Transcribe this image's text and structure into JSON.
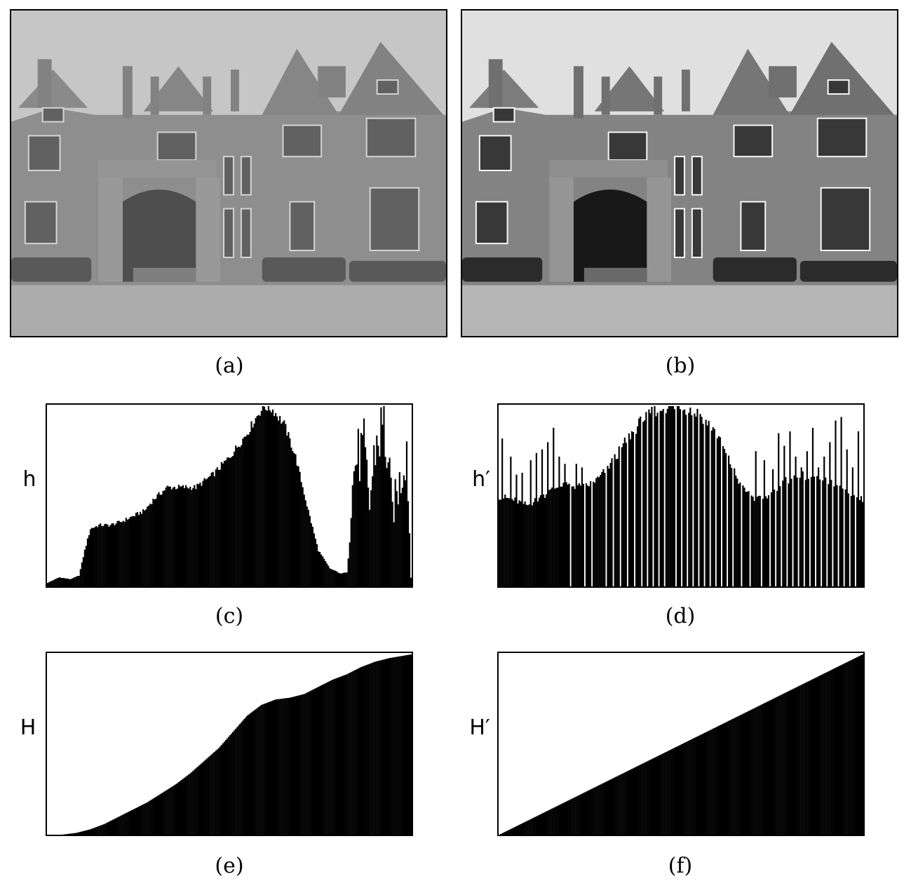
{
  "panels": [
    {
      "id": "a",
      "caption": "(a)"
    },
    {
      "id": "b",
      "caption": "(b)"
    },
    {
      "id": "c",
      "caption": "(c)"
    },
    {
      "id": "d",
      "caption": "(d)"
    },
    {
      "id": "e",
      "caption": "(e)"
    },
    {
      "id": "f",
      "caption": "(f)"
    }
  ],
  "chart_data": [
    {
      "type": "bar",
      "panel": "c",
      "ylabel": "h",
      "xlim": [
        0,
        255
      ],
      "grid": false,
      "profile_points": [
        [
          0,
          0.02
        ],
        [
          8,
          0.05
        ],
        [
          16,
          0.04
        ],
        [
          22,
          0.06
        ],
        [
          26,
          0.2
        ],
        [
          30,
          0.32
        ],
        [
          36,
          0.34
        ],
        [
          44,
          0.34
        ],
        [
          52,
          0.36
        ],
        [
          60,
          0.39
        ],
        [
          68,
          0.42
        ],
        [
          74,
          0.48
        ],
        [
          84,
          0.55
        ],
        [
          96,
          0.55
        ],
        [
          104,
          0.55
        ],
        [
          116,
          0.62
        ],
        [
          128,
          0.72
        ],
        [
          140,
          0.85
        ],
        [
          148,
          0.96
        ],
        [
          152,
          1.0
        ],
        [
          158,
          0.98
        ],
        [
          166,
          0.9
        ],
        [
          174,
          0.72
        ],
        [
          182,
          0.45
        ],
        [
          190,
          0.2
        ],
        [
          198,
          0.1
        ],
        [
          206,
          0.07
        ],
        [
          210,
          0.08
        ],
        [
          214,
          0.55
        ],
        [
          216,
          0.7
        ],
        [
          222,
          0.75
        ],
        [
          226,
          0.45
        ],
        [
          230,
          0.78
        ],
        [
          236,
          0.9
        ],
        [
          242,
          0.42
        ],
        [
          248,
          0.6
        ],
        [
          252,
          0.8
        ],
        [
          255,
          0.05
        ]
      ]
    },
    {
      "type": "bar",
      "panel": "d",
      "ylabel": "h′",
      "xlim": [
        0,
        255
      ],
      "grid": false,
      "profile_points": [
        [
          0,
          0.5
        ],
        [
          10,
          0.48
        ],
        [
          20,
          0.45
        ],
        [
          30,
          0.5
        ],
        [
          40,
          0.55
        ],
        [
          50,
          0.56
        ],
        [
          60,
          0.55
        ],
        [
          70,
          0.6
        ],
        [
          80,
          0.7
        ],
        [
          90,
          0.82
        ],
        [
          100,
          0.92
        ],
        [
          110,
          0.98
        ],
        [
          120,
          1.0
        ],
        [
          130,
          0.99
        ],
        [
          140,
          0.96
        ],
        [
          150,
          0.88
        ],
        [
          160,
          0.72
        ],
        [
          170,
          0.55
        ],
        [
          180,
          0.48
        ],
        [
          190,
          0.5
        ],
        [
          200,
          0.58
        ],
        [
          210,
          0.62
        ],
        [
          220,
          0.6
        ],
        [
          230,
          0.58
        ],
        [
          240,
          0.55
        ],
        [
          250,
          0.5
        ],
        [
          255,
          0.48
        ]
      ],
      "spikes": [
        [
          2,
          0.82
        ],
        [
          8,
          0.72
        ],
        [
          12,
          0.62
        ],
        [
          16,
          0.63
        ],
        [
          22,
          0.7
        ],
        [
          26,
          0.74
        ],
        [
          30,
          0.76
        ],
        [
          34,
          0.8
        ],
        [
          38,
          0.88
        ],
        [
          42,
          0.72
        ],
        [
          46,
          0.68
        ],
        [
          50,
          0.68
        ],
        [
          54,
          0.68
        ],
        [
          58,
          0.66
        ],
        [
          120,
          1.0
        ],
        [
          180,
          0.75
        ],
        [
          186,
          0.7
        ],
        [
          192,
          0.65
        ],
        [
          196,
          0.85
        ],
        [
          200,
          0.78
        ],
        [
          204,
          0.86
        ],
        [
          208,
          0.72
        ],
        [
          212,
          0.66
        ],
        [
          216,
          0.75
        ],
        [
          220,
          0.88
        ],
        [
          224,
          0.66
        ],
        [
          228,
          0.72
        ],
        [
          232,
          0.8
        ],
        [
          236,
          0.92
        ],
        [
          240,
          0.94
        ],
        [
          244,
          0.76
        ],
        [
          248,
          0.66
        ],
        [
          252,
          0.86
        ]
      ],
      "gaps": [
        50,
        60,
        65,
        75,
        80,
        85,
        90,
        95,
        100,
        104,
        108,
        112,
        116,
        124,
        128,
        132,
        136,
        140,
        144,
        148,
        152,
        156,
        160,
        164,
        170,
        176,
        184,
        190,
        194,
        198,
        202,
        206,
        210,
        214,
        218,
        222,
        226,
        230,
        234,
        238,
        242,
        246,
        250
      ]
    },
    {
      "type": "area",
      "panel": "e",
      "ylabel": "H",
      "xlim": [
        0,
        255
      ],
      "ylim": [
        0,
        1
      ],
      "grid": false,
      "profile_points": [
        [
          0,
          0.0
        ],
        [
          10,
          0.0
        ],
        [
          20,
          0.01
        ],
        [
          30,
          0.03
        ],
        [
          40,
          0.06
        ],
        [
          50,
          0.1
        ],
        [
          60,
          0.14
        ],
        [
          70,
          0.18
        ],
        [
          80,
          0.23
        ],
        [
          90,
          0.28
        ],
        [
          100,
          0.34
        ],
        [
          110,
          0.41
        ],
        [
          120,
          0.48
        ],
        [
          130,
          0.57
        ],
        [
          140,
          0.66
        ],
        [
          150,
          0.72
        ],
        [
          160,
          0.75
        ],
        [
          170,
          0.76
        ],
        [
          180,
          0.78
        ],
        [
          190,
          0.82
        ],
        [
          200,
          0.86
        ],
        [
          210,
          0.89
        ],
        [
          220,
          0.93
        ],
        [
          230,
          0.96
        ],
        [
          240,
          0.98
        ],
        [
          255,
          1.0
        ]
      ]
    },
    {
      "type": "area",
      "panel": "f",
      "ylabel": "H′",
      "xlim": [
        0,
        255
      ],
      "ylim": [
        0,
        1
      ],
      "grid": false,
      "profile_points": [
        [
          0,
          0.0
        ],
        [
          255,
          1.0
        ]
      ]
    }
  ],
  "images": {
    "a": {
      "tone": "original",
      "contrast": "low"
    },
    "b": {
      "tone": "equalized",
      "contrast": "high"
    }
  }
}
